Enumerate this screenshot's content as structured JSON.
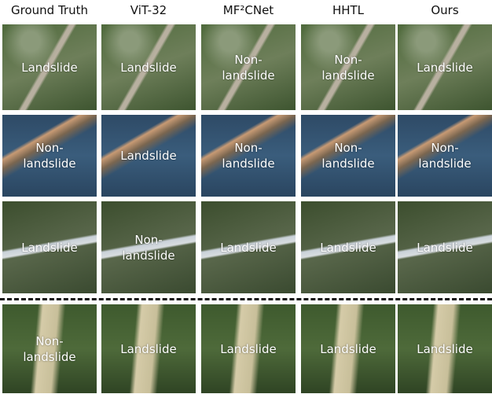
{
  "headers": [
    "Ground Truth",
    "ViT-32",
    "MF²CNet",
    "HHTL",
    "Ours"
  ],
  "rows": [
    [
      "Landslide",
      "Landslide",
      "Non-landslide",
      "Non-landslide",
      "Landslide"
    ],
    [
      "Non-landslide",
      "Landslide",
      "Non-landslide",
      "Non-landslide",
      "Non-landslide"
    ],
    [
      "Landslide",
      "Non-landslide",
      "Landslide",
      "Landslide",
      "Landslide"
    ],
    [
      "Non-landslide",
      "Landslide",
      "Landslide",
      "Landslide",
      "Landslide"
    ]
  ]
}
